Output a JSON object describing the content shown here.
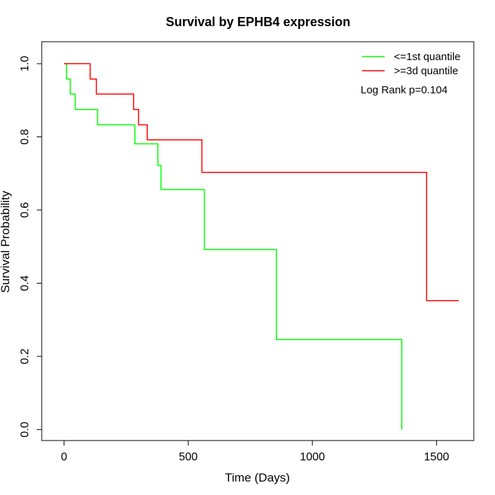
{
  "chart_data": {
    "type": "line",
    "title": "Survival by EPHB4 expression",
    "xlabel": "Time (Days)",
    "ylabel": "Survival Probability",
    "xlim": [
      -90,
      1650
    ],
    "ylim": [
      -0.03,
      1.06
    ],
    "x_ticks": [
      0,
      500,
      1000,
      1500
    ],
    "x_tick_labels": [
      "0",
      "500",
      "1000",
      "1500"
    ],
    "y_ticks": [
      0.0,
      0.2,
      0.4,
      0.6,
      0.8,
      1.0
    ],
    "y_tick_labels": [
      "0.0",
      "0.2",
      "0.4",
      "0.6",
      "0.8",
      "1.0"
    ],
    "grid": false,
    "legend_position": "top-right",
    "annotation": "Log Rank p=0.104",
    "series": [
      {
        "name": "<=1st quantile",
        "color": "#00ff00",
        "x": [
          0,
          10,
          25,
          45,
          135,
          285,
          378,
          390,
          565,
          855,
          1360
        ],
        "y": [
          1.0,
          0.958,
          0.917,
          0.875,
          0.833,
          0.781,
          0.722,
          0.656,
          0.492,
          0.246,
          0.0
        ]
      },
      {
        "name": ">=3d quantile",
        "color": "#ff0000",
        "x": [
          0,
          105,
          130,
          280,
          300,
          310,
          335,
          555,
          1460,
          1590
        ],
        "y": [
          1.0,
          0.958,
          0.917,
          0.875,
          0.833,
          0.833,
          0.792,
          0.703,
          0.352,
          0.352
        ]
      }
    ]
  }
}
